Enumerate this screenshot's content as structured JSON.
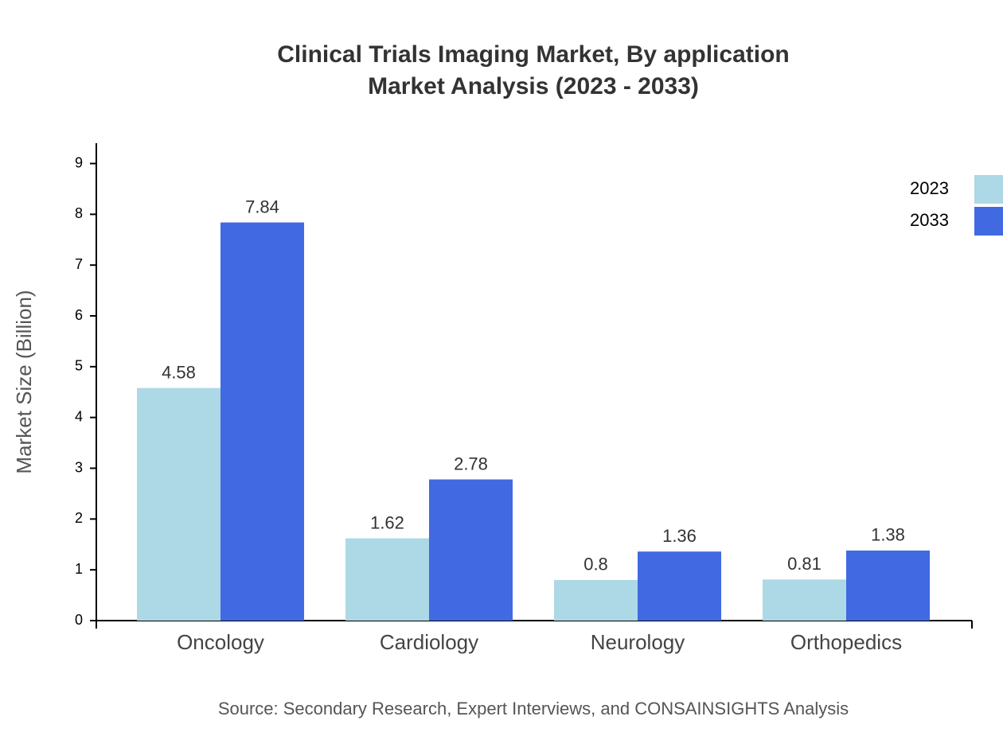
{
  "chart_data": {
    "type": "bar",
    "title": "Clinical Trials Imaging Market, By application",
    "subtitle": "Market Analysis (2023 - 2033)",
    "y_label": "Market Size (Billion)",
    "source": "Source: Secondary Research, Expert Interviews, and CONSAINSIGHTS Analysis",
    "categories": [
      "Oncology",
      "Cardiology",
      "Neurology",
      "Orthopedics"
    ],
    "series": [
      {
        "name": "2023",
        "color": "#add8e6",
        "values": [
          4.58,
          1.62,
          0.8,
          0.81
        ]
      },
      {
        "name": "2033",
        "color": "#4169e1",
        "values": [
          7.84,
          2.78,
          1.36,
          1.38
        ]
      }
    ],
    "ylim": [
      0,
      9.4
    ],
    "yticks": [
      0,
      1,
      2,
      3,
      4,
      5,
      6,
      7,
      8,
      9
    ],
    "legend": "top-right"
  }
}
